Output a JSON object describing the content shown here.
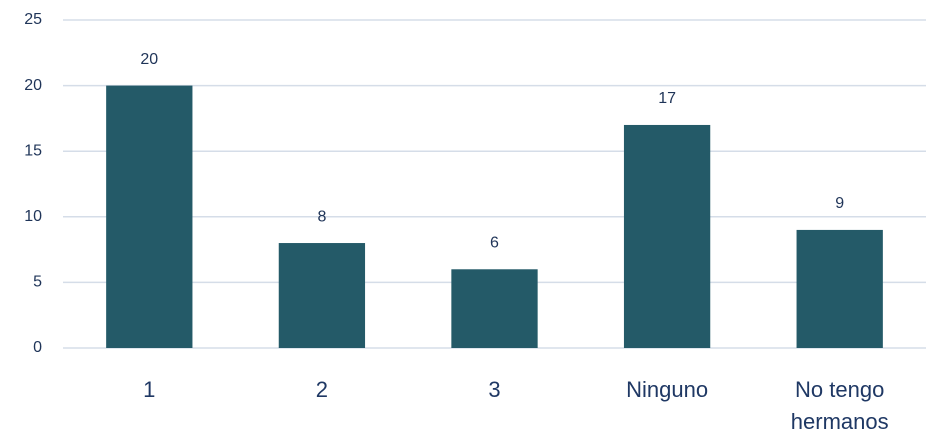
{
  "chart_data": {
    "type": "bar",
    "categories": [
      "1",
      "2",
      "3",
      "Ninguno",
      "No tengo hermanos"
    ],
    "values": [
      20,
      8,
      6,
      17,
      9
    ],
    "color": "#245a68",
    "ylim": [
      0,
      25
    ],
    "yticks": [
      0,
      5,
      10,
      15,
      20,
      25
    ],
    "grid": true,
    "data_labels": true
  }
}
